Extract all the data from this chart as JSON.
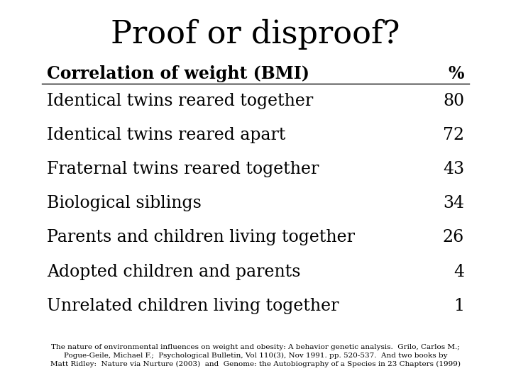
{
  "title": "Proof or disproof?",
  "header_label": "Correlation of weight (BMI)",
  "header_pct": "%",
  "rows": [
    [
      "Identical twins reared together",
      "80"
    ],
    [
      "Identical twins reared apart",
      "72"
    ],
    [
      "Fraternal twins reared together",
      "43"
    ],
    [
      "Biological siblings",
      "34"
    ],
    [
      "Parents and children living together",
      "26"
    ],
    [
      "Adopted children and parents",
      "4"
    ],
    [
      "Unrelated children living together",
      "1"
    ]
  ],
  "footnote": "The nature of environmental influences on weight and obesity: A behavior genetic analysis.  Grilo, Carlos M.;\nPogue-Geile, Michael F.;  Psychological Bulletin, Vol 110(3), Nov 1991. pp. 520-537.  And two books by\nMatt Ridley:  Nature via Nurture (2003)  and  Genome: the Autobiography of a Species in 23 Chapters (1999)",
  "bg_color": "#ffffff",
  "text_color": "#000000",
  "title_fontsize": 32,
  "header_fontsize": 17,
  "row_fontsize": 17,
  "footnote_fontsize": 7.5
}
